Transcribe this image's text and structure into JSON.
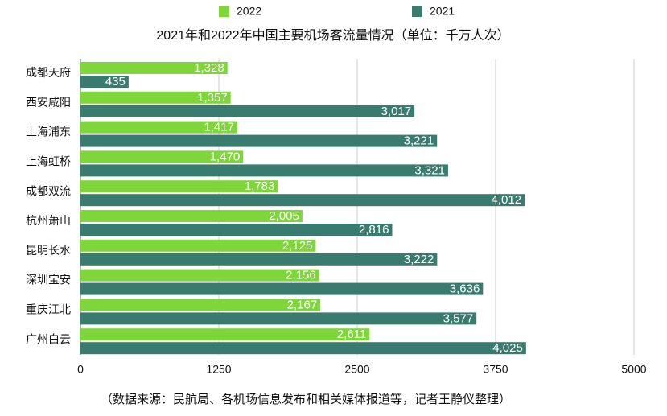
{
  "chart_data": {
    "type": "hbar",
    "title": "2021年和2022年中国主要机场客流量情况（单位：千万人次）",
    "note": "（数据来源：民航局、各机场信息发布和相关媒体报道等，记者王静仪整理）",
    "categories": [
      "成都天府",
      "西安咸阳",
      "上海浦东",
      "上海虹桥",
      "成都双流",
      "杭州萧山",
      "昆明长水",
      "深圳宝安",
      "重庆江北",
      "广州白云"
    ],
    "series": [
      {
        "name": "2022",
        "color": "#7ed63a",
        "values": [
          1328,
          1357,
          1417,
          1470,
          1783,
          2005,
          2125,
          2156,
          2167,
          2611
        ],
        "value_labels": [
          "1,328",
          "1,357",
          "1,417",
          "1,470",
          "1,783",
          "2,005",
          "2,125",
          "2,156",
          "2,167",
          "2,611"
        ]
      },
      {
        "name": "2021",
        "color": "#3a7b70",
        "values": [
          435,
          3017,
          3221,
          3321,
          4012,
          2816,
          3222,
          3636,
          3577,
          4025
        ],
        "value_labels": [
          "435",
          "3,017",
          "3,221",
          "3,321",
          "4,012",
          "2,816",
          "3,222",
          "3,636",
          "3,577",
          "4,025"
        ]
      }
    ],
    "xlim": [
      0,
      5000
    ],
    "xticks": [
      0,
      1250,
      2500,
      3750,
      5000
    ],
    "grid": true
  }
}
